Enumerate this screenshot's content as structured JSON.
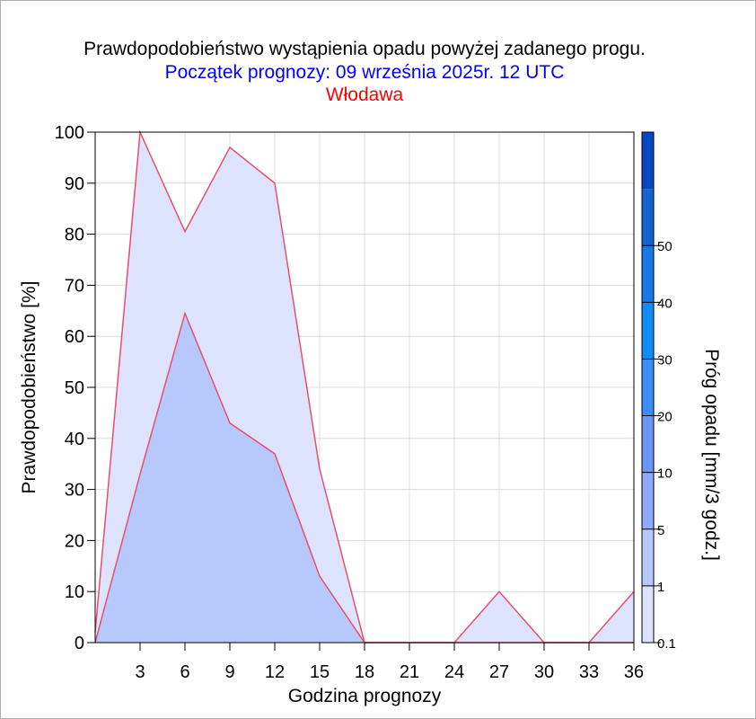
{
  "chart_data": {
    "type": "area",
    "title": "Prawdopodobieństwo wystąpienia opadu powyżej zadanego progu.",
    "subtitle": "Początek prognozy: 09 września 2025r. 12 UTC",
    "location": "Włodawa",
    "xlabel": "Godzina prognozy",
    "ylabel": "Prawdopodobieństwo [%]",
    "colorbar_label": "Próg opadu [mm/3 godz.]",
    "xlim": [
      0,
      36
    ],
    "ylim": [
      0,
      100
    ],
    "x_ticks": [
      "3",
      "6",
      "9",
      "12",
      "15",
      "18",
      "21",
      "24",
      "27",
      "30",
      "33",
      "36"
    ],
    "y_ticks": [
      "0",
      "10",
      "20",
      "30",
      "40",
      "50",
      "60",
      "70",
      "80",
      "90",
      "100"
    ],
    "grid": true,
    "x": [
      0,
      3,
      6,
      9,
      12,
      15,
      18,
      21,
      24,
      27,
      30,
      33,
      36
    ],
    "series": [
      {
        "threshold": "0.1",
        "color": "#dde3fc",
        "values": [
          2,
          100,
          80.5,
          97,
          90,
          34,
          0,
          0,
          0,
          10,
          0,
          0,
          10
        ]
      },
      {
        "threshold": "1",
        "color": "#b7c8fd",
        "values": [
          0,
          33,
          64.5,
          43,
          37,
          13,
          0,
          0,
          0,
          0,
          0,
          0,
          0
        ]
      }
    ],
    "line_color": "#e8506a",
    "colorbar": {
      "labels": [
        "0.1",
        "1",
        "5",
        "10",
        "20",
        "30",
        "40",
        "50"
      ],
      "colors": [
        "#dde3fc",
        "#b7c8fd",
        "#8faaf8",
        "#6b96f6",
        "#3d8cf5",
        "#0f8cf7",
        "#1977e6",
        "#1463d2",
        "#0a48c0"
      ]
    },
    "colors": {
      "title": "#000000",
      "subtitle": "#0000ff",
      "location": "#ff0000",
      "grid": "#dcdcdc"
    }
  }
}
